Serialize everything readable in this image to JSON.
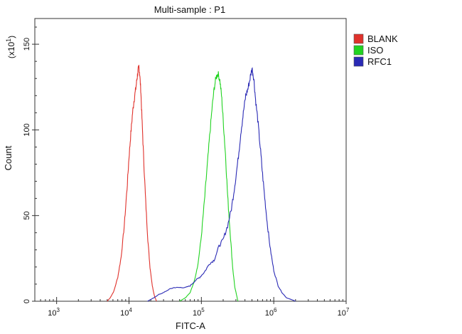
{
  "chart_data": {
    "type": "line",
    "title": "Multi-sample : P1",
    "xlabel": "FITC-A",
    "ylabel": "Count",
    "y_multiplier": "(x10",
    "y_multiplier_exp": "1",
    "y_multiplier_close": ")",
    "x_scale": "log",
    "xlim": [
      500,
      10000000
    ],
    "ylim": [
      0,
      165
    ],
    "x_ticks": [
      {
        "value": 1000,
        "base": "10",
        "exp": "3"
      },
      {
        "value": 10000,
        "base": "10",
        "exp": "4"
      },
      {
        "value": 100000,
        "base": "10",
        "exp": "5"
      },
      {
        "value": 1000000,
        "base": "10",
        "exp": "6"
      },
      {
        "value": 10000000,
        "base": "10",
        "exp": "7"
      }
    ],
    "y_ticks": [
      {
        "value": 0,
        "label": "0"
      },
      {
        "value": 50,
        "label": "50"
      },
      {
        "value": 100,
        "label": "100"
      },
      {
        "value": 150,
        "label": "150"
      }
    ],
    "grid": false,
    "legend": "top-right",
    "series": [
      {
        "name": "BLANK",
        "color": "#e0312b",
        "x": [
          5000,
          5500,
          6200,
          7000,
          7800,
          8600,
          9400,
          10000,
          10600,
          11200,
          11800,
          12400,
          12900,
          13300,
          13700,
          14100,
          14600,
          15200,
          16000,
          17000,
          18200,
          19500,
          21000,
          22500,
          24000
        ],
        "y": [
          0,
          2,
          6,
          14,
          26,
          44,
          66,
          84,
          98,
          110,
          118,
          124,
          130,
          134,
          137,
          132,
          122,
          104,
          82,
          58,
          36,
          20,
          9,
          3,
          0
        ]
      },
      {
        "name": "ISO",
        "color": "#21d321",
        "x": [
          50000,
          60000,
          70000,
          80000,
          90000,
          100000,
          110000,
          120000,
          130000,
          140000,
          150000,
          160000,
          170000,
          180000,
          190000,
          200000,
          215000,
          230000,
          250000,
          270000,
          290000,
          320000
        ],
        "y": [
          0,
          2,
          5,
          12,
          22,
          38,
          58,
          78,
          96,
          112,
          124,
          131,
          133,
          129,
          120,
          106,
          86,
          62,
          40,
          20,
          8,
          0
        ]
      },
      {
        "name": "RFC1",
        "color": "#2a2ab5",
        "x": [
          18000,
          22000,
          26000,
          30000,
          36000,
          42000,
          50000,
          60000,
          70000,
          82000,
          95000,
          110000,
          130000,
          150000,
          175000,
          200000,
          230000,
          260000,
          290000,
          320000,
          350000,
          380000,
          410000,
          440000,
          470000,
          500000,
          530000,
          560000,
          600000,
          650000,
          700000,
          760000,
          820000,
          900000,
          1000000,
          1150000,
          1300000,
          1500000,
          1750000,
          2000000
        ],
        "y": [
          0,
          2,
          4,
          5,
          7,
          8,
          8,
          8,
          9,
          12,
          14,
          17,
          22,
          24,
          32,
          36,
          44,
          54,
          68,
          82,
          98,
          110,
          120,
          124,
          130,
          136,
          130,
          118,
          106,
          90,
          74,
          58,
          44,
          30,
          18,
          9,
          5,
          2,
          1,
          0
        ]
      }
    ]
  }
}
